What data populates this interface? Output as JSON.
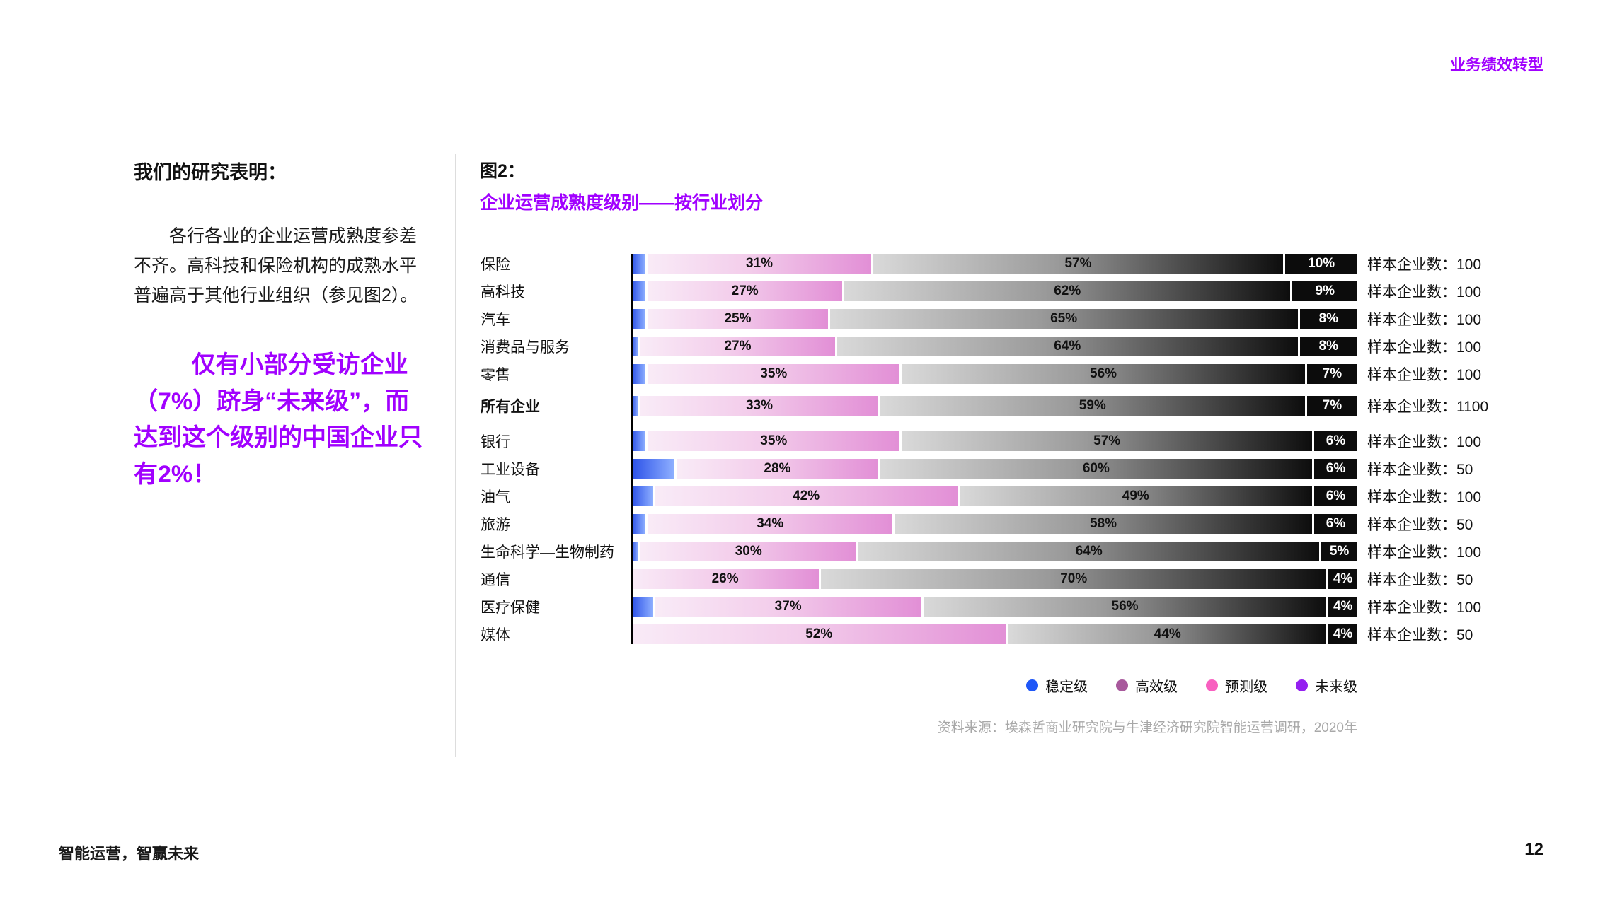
{
  "page": {
    "header_tag": "业务绩效转型",
    "footer_left": "智能运营，智赢未来",
    "page_number": "12"
  },
  "left_column": {
    "heading": "我们的研究表明：",
    "paragraph": "各行各业的企业运营成熟度参差不齐。高科技和保险机构的成熟水平普遍高于其他行业组织（参见图2）。",
    "callout": "仅有小部分受访企业（7%）跻身“未来级”，而达到这个级别的中国企业只有2%！"
  },
  "chart": {
    "figure_label": "图2：",
    "title": "企业运营成熟度级别——按行业划分",
    "sample_label_prefix": "样本企业数：",
    "legend": [
      {
        "label": "稳定级",
        "color": "#1f57f7"
      },
      {
        "label": "高效级",
        "color": "#a8599c"
      },
      {
        "label": "预测级",
        "color": "#f860c0"
      },
      {
        "label": "未来级",
        "color": "#9420f0"
      }
    ],
    "source": "资料来源：埃森哲商业研究院与牛津经济研究院智能运营调研，2020年"
  },
  "chart_data": {
    "type": "bar",
    "orientation": "horizontal-stacked",
    "unit": "%",
    "categories": [
      "保险",
      "高科技",
      "汽车",
      "消费品与服务",
      "零售",
      "所有企业",
      "银行",
      "工业设备",
      "油气",
      "旅游",
      "生命科学—生物制药",
      "通信",
      "医疗保健",
      "媒体"
    ],
    "series": [
      {
        "name": "稳定级",
        "labeled": false,
        "values": [
          2,
          2,
          2,
          1,
          2,
          1,
          2,
          6,
          3,
          2,
          1,
          0,
          3,
          0
        ]
      },
      {
        "name": "高效级",
        "labeled": true,
        "values": [
          31,
          27,
          25,
          27,
          35,
          33,
          35,
          28,
          42,
          34,
          30,
          26,
          37,
          52
        ]
      },
      {
        "name": "预测级",
        "labeled": true,
        "values": [
          57,
          62,
          65,
          64,
          56,
          59,
          57,
          60,
          49,
          58,
          64,
          70,
          56,
          44
        ]
      },
      {
        "name": "未来级",
        "labeled": true,
        "values": [
          10,
          9,
          8,
          8,
          7,
          7,
          6,
          6,
          6,
          6,
          5,
          4,
          4,
          4
        ]
      }
    ],
    "samples": [
      100,
      100,
      100,
      100,
      100,
      1100,
      100,
      50,
      100,
      50,
      100,
      50,
      100,
      50
    ],
    "bold_row_index": 5,
    "xlim": [
      0,
      100
    ],
    "legend_position": "bottom-right"
  }
}
